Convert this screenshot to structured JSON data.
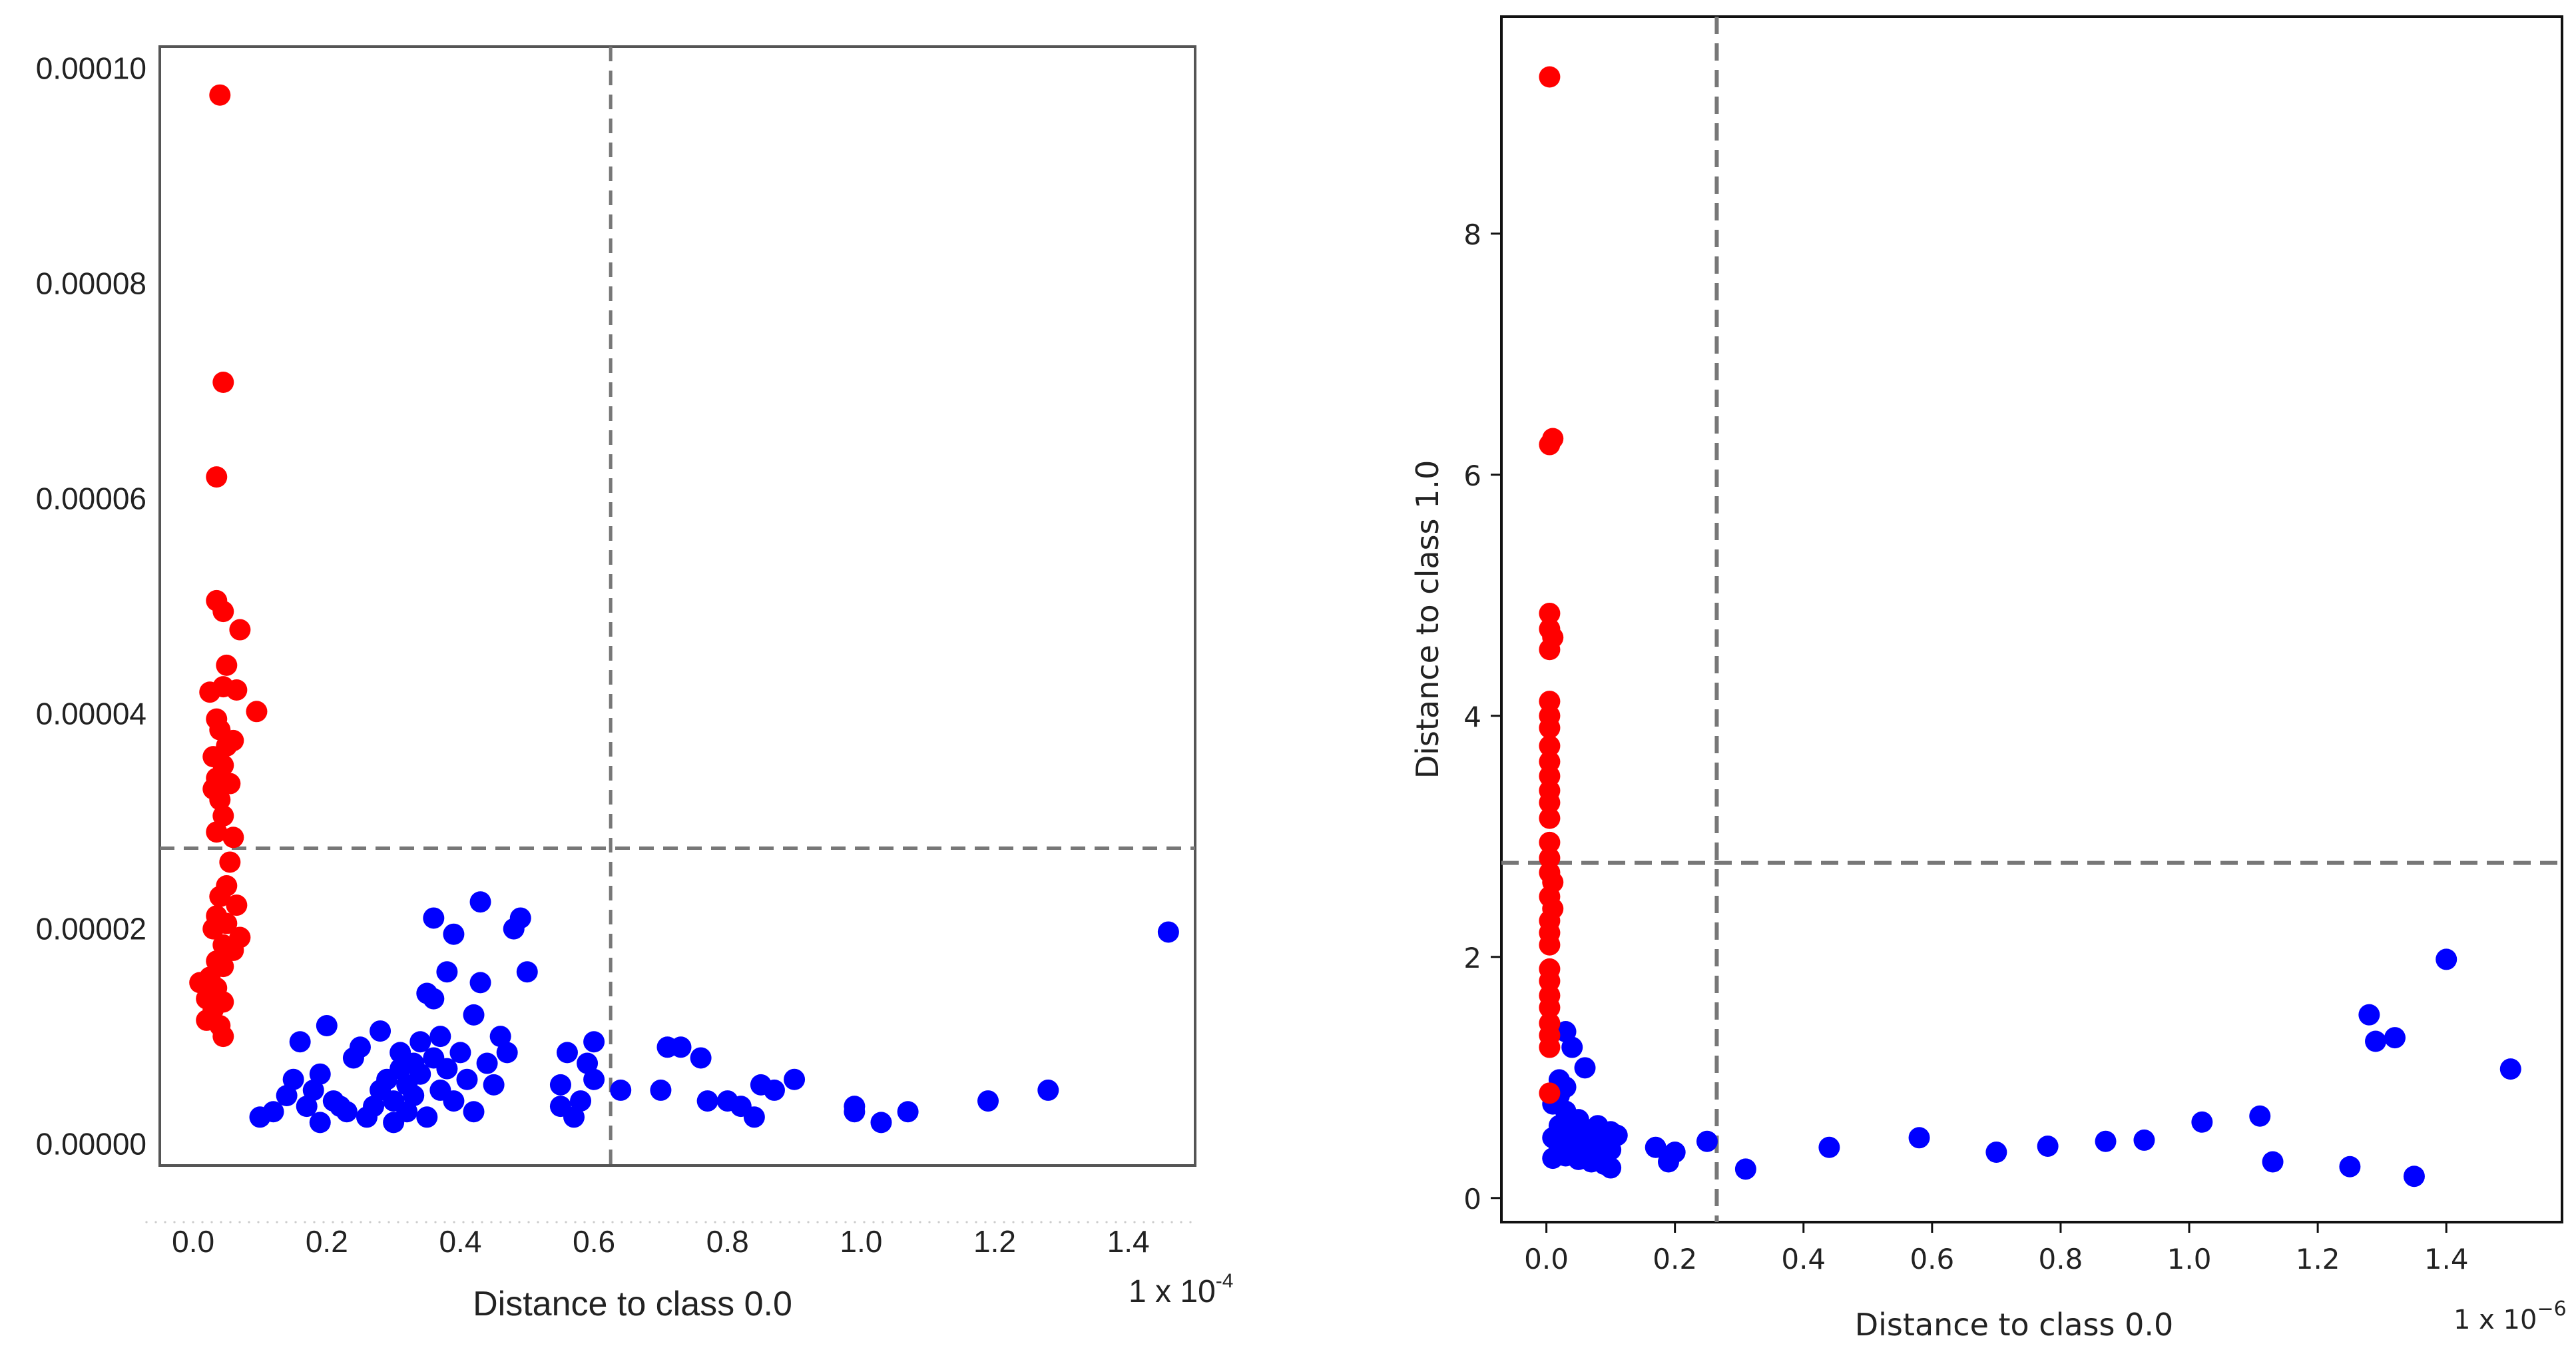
{
  "chart_data": [
    {
      "type": "scatter",
      "title": "",
      "xlabel": "Distance to class 0.0",
      "ylabel": "",
      "x_multiplier": "1 x 10",
      "x_multiplier_exp": "-4",
      "xlim": [
        -0.05,
        1.5
      ],
      "ylim": [
        -2e-06,
        0.000102
      ],
      "x_ticks": [
        "0.0",
        "0.2",
        "0.4",
        "0.6",
        "0.8",
        "1.0",
        "1.2",
        "1.4"
      ],
      "x_tick_values": [
        0.0,
        0.2,
        0.4,
        0.6,
        0.8,
        1.0,
        1.2,
        1.4
      ],
      "y_ticks": [
        "0.00000",
        "0.00002",
        "0.00004",
        "0.00006",
        "0.00008",
        "0.00010"
      ],
      "y_tick_values": [
        0.0,
        2e-05,
        4e-05,
        6e-05,
        8e-05,
        0.0001
      ],
      "thresholds": {
        "x": 0.625,
        "y": 2.75e-05
      },
      "grid": false,
      "series": [
        {
          "color": "#ff0000",
          "points": [
            [
              0.04,
              9.75e-05
            ],
            [
              0.045,
              7.08e-05
            ],
            [
              0.035,
              6.2e-05
            ],
            [
              0.035,
              5.05e-05
            ],
            [
              0.045,
              4.95e-05
            ],
            [
              0.07,
              4.78e-05
            ],
            [
              0.05,
              4.45e-05
            ],
            [
              0.025,
              4.2e-05
            ],
            [
              0.045,
              4.25e-05
            ],
            [
              0.065,
              4.22e-05
            ],
            [
              0.095,
              4.02e-05
            ],
            [
              0.035,
              3.95e-05
            ],
            [
              0.04,
              3.85e-05
            ],
            [
              0.06,
              3.75e-05
            ],
            [
              0.05,
              3.7e-05
            ],
            [
              0.03,
              3.6e-05
            ],
            [
              0.045,
              3.52e-05
            ],
            [
              0.035,
              3.4e-05
            ],
            [
              0.055,
              3.35e-05
            ],
            [
              0.03,
              3.3e-05
            ],
            [
              0.04,
              3.2e-05
            ],
            [
              0.045,
              3.05e-05
            ],
            [
              0.035,
              2.9e-05
            ],
            [
              0.06,
              2.85e-05
            ],
            [
              0.055,
              2.62e-05
            ],
            [
              0.05,
              2.4e-05
            ],
            [
              0.04,
              2.3e-05
            ],
            [
              0.065,
              2.22e-05
            ],
            [
              0.035,
              2.12e-05
            ],
            [
              0.05,
              2.05e-05
            ],
            [
              0.03,
              2e-05
            ],
            [
              0.07,
              1.92e-05
            ],
            [
              0.045,
              1.85e-05
            ],
            [
              0.06,
              1.8e-05
            ],
            [
              0.035,
              1.7e-05
            ],
            [
              0.045,
              1.65e-05
            ],
            [
              0.025,
              1.55e-05
            ],
            [
              0.01,
              1.5e-05
            ],
            [
              0.035,
              1.45e-05
            ],
            [
              0.02,
              1.35e-05
            ],
            [
              0.045,
              1.32e-05
            ],
            [
              0.03,
              1.25e-05
            ],
            [
              0.02,
              1.15e-05
            ],
            [
              0.04,
              1.1e-05
            ],
            [
              0.045,
              1e-05
            ]
          ]
        },
        {
          "color": "#0000ff",
          "points": [
            [
              0.1,
              2.5e-06
            ],
            [
              0.12,
              3e-06
            ],
            [
              0.14,
              4.5e-06
            ],
            [
              0.15,
              6e-06
            ],
            [
              0.16,
              9.5e-06
            ],
            [
              0.17,
              3.5e-06
            ],
            [
              0.18,
              5e-06
            ],
            [
              0.19,
              2e-06
            ],
            [
              0.19,
              6.5e-06
            ],
            [
              0.2,
              1.1e-05
            ],
            [
              0.21,
              4e-06
            ],
            [
              0.22,
              3.5e-06
            ],
            [
              0.23,
              3e-06
            ],
            [
              0.24,
              8e-06
            ],
            [
              0.25,
              9e-06
            ],
            [
              0.26,
              2.5e-06
            ],
            [
              0.27,
              3.5e-06
            ],
            [
              0.28,
              5e-06
            ],
            [
              0.28,
              1.05e-05
            ],
            [
              0.29,
              6e-06
            ],
            [
              0.3,
              2e-06
            ],
            [
              0.3,
              4e-06
            ],
            [
              0.31,
              7e-06
            ],
            [
              0.31,
              8.5e-06
            ],
            [
              0.32,
              3e-06
            ],
            [
              0.32,
              5.5e-06
            ],
            [
              0.33,
              7.5e-06
            ],
            [
              0.33,
              4.5e-06
            ],
            [
              0.34,
              6.5e-06
            ],
            [
              0.34,
              9.5e-06
            ],
            [
              0.35,
              1.4e-05
            ],
            [
              0.35,
              2.5e-06
            ],
            [
              0.36,
              8e-06
            ],
            [
              0.36,
              1.35e-05
            ],
            [
              0.36,
              2.1e-05
            ],
            [
              0.37,
              5e-06
            ],
            [
              0.37,
              1e-05
            ],
            [
              0.38,
              1.6e-05
            ],
            [
              0.38,
              7e-06
            ],
            [
              0.39,
              1.95e-05
            ],
            [
              0.39,
              4e-06
            ],
            [
              0.4,
              8.5e-06
            ],
            [
              0.41,
              6e-06
            ],
            [
              0.42,
              1.2e-05
            ],
            [
              0.42,
              3e-06
            ],
            [
              0.43,
              1.5e-05
            ],
            [
              0.43,
              2.25e-05
            ],
            [
              0.44,
              7.5e-06
            ],
            [
              0.45,
              5.5e-06
            ],
            [
              0.46,
              1e-05
            ],
            [
              0.47,
              8.5e-06
            ],
            [
              0.48,
              2e-05
            ],
            [
              0.49,
              2.1e-05
            ],
            [
              0.5,
              1.6e-05
            ],
            [
              0.55,
              5.5e-06
            ],
            [
              0.55,
              3.5e-06
            ],
            [
              0.56,
              8.5e-06
            ],
            [
              0.57,
              2.5e-06
            ],
            [
              0.58,
              4e-06
            ],
            [
              0.59,
              7.5e-06
            ],
            [
              0.6,
              9.5e-06
            ],
            [
              0.6,
              6e-06
            ],
            [
              0.64,
              5e-06
            ],
            [
              0.7,
              5e-06
            ],
            [
              0.71,
              9e-06
            ],
            [
              0.73,
              9e-06
            ],
            [
              0.76,
              8e-06
            ],
            [
              0.77,
              4e-06
            ],
            [
              0.8,
              4e-06
            ],
            [
              0.82,
              3.5e-06
            ],
            [
              0.84,
              2.5e-06
            ],
            [
              0.85,
              5.5e-06
            ],
            [
              0.87,
              5e-06
            ],
            [
              0.9,
              6e-06
            ],
            [
              0.99,
              3.5e-06
            ],
            [
              0.99,
              3e-06
            ],
            [
              1.03,
              2e-06
            ],
            [
              1.07,
              3e-06
            ],
            [
              1.19,
              4e-06
            ],
            [
              1.28,
              5e-06
            ],
            [
              1.46,
              1.97e-05
            ]
          ]
        }
      ]
    },
    {
      "type": "scatter",
      "title": "",
      "xlabel": "Distance to class 0.0",
      "ylabel": "Distance to class 1.0",
      "x_multiplier": "1 x 10",
      "x_multiplier_exp": "−6",
      "xlim": [
        -0.07,
        1.58
      ],
      "ylim": [
        -0.2,
        9.8
      ],
      "x_ticks": [
        "0.0",
        "0.2",
        "0.4",
        "0.6",
        "0.8",
        "1.0",
        "1.2",
        "1.4"
      ],
      "x_tick_values": [
        0.0,
        0.2,
        0.4,
        0.6,
        0.8,
        1.0,
        1.2,
        1.4
      ],
      "y_ticks": [
        "0",
        "2",
        "4",
        "6",
        "8"
      ],
      "y_tick_values": [
        0,
        2,
        4,
        6,
        8
      ],
      "thresholds": {
        "x": 0.265,
        "y": 2.78
      },
      "grid": false,
      "series": [
        {
          "color": "#ff0000",
          "points": [
            [
              0.005,
              9.3
            ],
            [
              0.01,
              6.3
            ],
            [
              0.005,
              6.25
            ],
            [
              0.005,
              4.85
            ],
            [
              0.005,
              4.72
            ],
            [
              0.01,
              4.65
            ],
            [
              0.005,
              4.55
            ],
            [
              0.005,
              4.12
            ],
            [
              0.005,
              4.0
            ],
            [
              0.005,
              3.9
            ],
            [
              0.005,
              3.75
            ],
            [
              0.005,
              3.62
            ],
            [
              0.005,
              3.5
            ],
            [
              0.005,
              3.38
            ],
            [
              0.005,
              3.28
            ],
            [
              0.005,
              3.15
            ],
            [
              0.005,
              2.95
            ],
            [
              0.005,
              2.82
            ],
            [
              0.005,
              2.7
            ],
            [
              0.01,
              2.62
            ],
            [
              0.005,
              2.5
            ],
            [
              0.01,
              2.4
            ],
            [
              0.005,
              2.3
            ],
            [
              0.005,
              2.2
            ],
            [
              0.005,
              2.1
            ],
            [
              0.005,
              1.9
            ],
            [
              0.005,
              1.8
            ],
            [
              0.005,
              1.68
            ],
            [
              0.005,
              1.58
            ],
            [
              0.005,
              1.45
            ],
            [
              0.005,
              1.35
            ],
            [
              0.005,
              1.25
            ],
            [
              0.005,
              0.87
            ]
          ]
        },
        {
          "color": "#0000ff",
          "points": [
            [
              0.03,
              1.38
            ],
            [
              0.04,
              1.25
            ],
            [
              0.06,
              1.08
            ],
            [
              0.02,
              0.98
            ],
            [
              0.03,
              0.92
            ],
            [
              0.02,
              0.85
            ],
            [
              0.01,
              0.78
            ],
            [
              0.03,
              0.72
            ],
            [
              0.05,
              0.65
            ],
            [
              0.02,
              0.6
            ],
            [
              0.04,
              0.58
            ],
            [
              0.06,
              0.55
            ],
            [
              0.08,
              0.6
            ],
            [
              0.1,
              0.55
            ],
            [
              0.11,
              0.52
            ],
            [
              0.01,
              0.5
            ],
            [
              0.03,
              0.48
            ],
            [
              0.05,
              0.46
            ],
            [
              0.07,
              0.45
            ],
            [
              0.09,
              0.48
            ],
            [
              0.02,
              0.42
            ],
            [
              0.04,
              0.4
            ],
            [
              0.06,
              0.38
            ],
            [
              0.08,
              0.35
            ],
            [
              0.1,
              0.4
            ],
            [
              0.03,
              0.35
            ],
            [
              0.05,
              0.32
            ],
            [
              0.07,
              0.3
            ],
            [
              0.09,
              0.28
            ],
            [
              0.01,
              0.33
            ],
            [
              0.1,
              0.25
            ],
            [
              0.17,
              0.42
            ],
            [
              0.19,
              0.3
            ],
            [
              0.2,
              0.38
            ],
            [
              0.25,
              0.47
            ],
            [
              0.31,
              0.24
            ],
            [
              0.44,
              0.42
            ],
            [
              0.58,
              0.5
            ],
            [
              0.7,
              0.38
            ],
            [
              0.78,
              0.43
            ],
            [
              0.87,
              0.47
            ],
            [
              0.93,
              0.48
            ],
            [
              1.02,
              0.63
            ],
            [
              1.11,
              0.68
            ],
            [
              1.13,
              0.3
            ],
            [
              1.25,
              0.26
            ],
            [
              1.28,
              1.52
            ],
            [
              1.29,
              1.3
            ],
            [
              1.32,
              1.33
            ],
            [
              1.35,
              0.18
            ],
            [
              1.4,
              1.98
            ],
            [
              1.5,
              1.07
            ]
          ]
        }
      ]
    }
  ]
}
